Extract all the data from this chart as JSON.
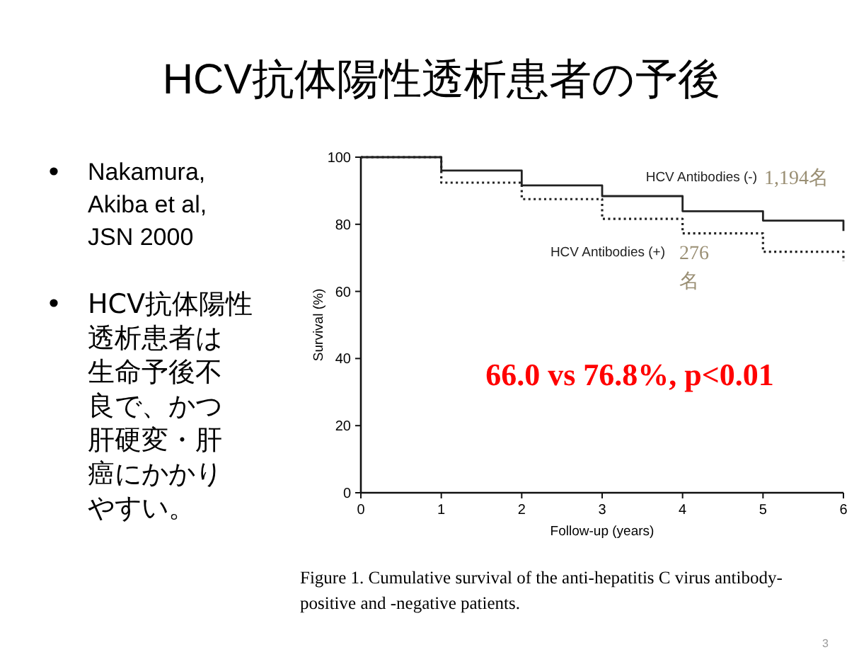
{
  "chart_data": {
    "type": "step",
    "title": "HCV抗体陽性透析患者の予後",
    "xlabel": "Follow-up (years)",
    "ylabel": "Survival (%)",
    "x": [
      0,
      1,
      2,
      3,
      4,
      5,
      6
    ],
    "series": [
      {
        "name": "HCV Antibodies (-)",
        "color": "#222222",
        "line_style": "solid",
        "values": [
          100,
          96,
          91.6,
          88.4,
          83.9,
          81.1,
          78
        ]
      },
      {
        "name": "HCV Antibodies (+)",
        "color": "#222222",
        "line_style": "dotted",
        "values": [
          100,
          92.4,
          87.5,
          81.6,
          77.3,
          71.8,
          69
        ]
      }
    ],
    "xlim": [
      0,
      6
    ],
    "xticks": [
      0,
      1,
      2,
      3,
      4,
      5,
      6
    ],
    "ylim": [
      0,
      100
    ],
    "yticks": [
      0,
      20,
      40,
      60,
      80,
      100
    ],
    "grid": false,
    "legend": false,
    "marker": "none",
    "annotations": [
      "Nakamura,\nAkiba et al,\nJSN 2000",
      "HCV抗体陽性透析患者は生命予後不良で、かつ肝硬変・肝癌にかかりやすい。",
      "66.0 vs 76.8%, p<0.01",
      "1,194名",
      "276\n名",
      "Figure 1. Cumulative survival of the anti-hepatitis C virus antibody-\npositive and -negative patients.",
      "3"
    ]
  }
}
